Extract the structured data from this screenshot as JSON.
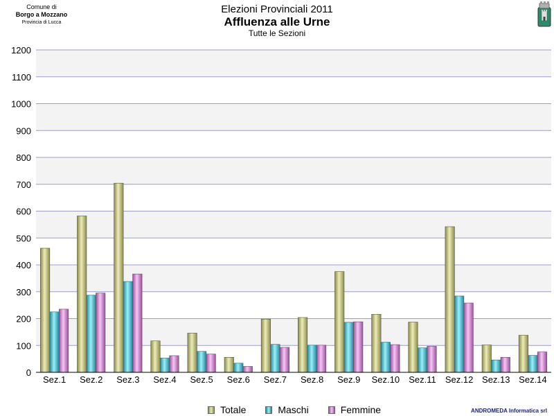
{
  "header": {
    "comune_line1": "Comune di",
    "comune_line2": "Borgo a Mozzano",
    "comune_line3": "Provincia di Lucca",
    "title": "Elezioni Provinciali 2011",
    "subtitle": "Affluenza alle Urne",
    "subsubtitle": "Tutte le Sezioni"
  },
  "footer": {
    "credit": "ANDROMEDA Informatica srl"
  },
  "colors": {
    "totale": "#d6d68e",
    "maschi": "#4dc7d9",
    "femmine": "#d98fd9",
    "gridline": "#9b9bd0",
    "band": "#f3f3f3"
  },
  "chart_data": {
    "type": "bar",
    "categories": [
      "Sez.1",
      "Sez.2",
      "Sez.3",
      "Sez.4",
      "Sez.5",
      "Sez.6",
      "Sez.7",
      "Sez.8",
      "Sez.9",
      "Sez.10",
      "Sez.11",
      "Sez.12",
      "Sez.13",
      "Sez.14"
    ],
    "series": [
      {
        "name": "Totale",
        "values": [
          462,
          582,
          704,
          117,
          146,
          56,
          198,
          204,
          375,
          216,
          187,
          542,
          102,
          138
        ]
      },
      {
        "name": "Maschi",
        "values": [
          225,
          287,
          338,
          53,
          78,
          34,
          104,
          101,
          186,
          112,
          91,
          284,
          46,
          63
        ]
      },
      {
        "name": "Femmine",
        "values": [
          235,
          295,
          366,
          62,
          68,
          22,
          93,
          101,
          188,
          103,
          97,
          258,
          56,
          76
        ]
      }
    ],
    "ylim": [
      0,
      1200
    ],
    "yticks": [
      0,
      100,
      200,
      300,
      400,
      500,
      600,
      700,
      800,
      900,
      1000,
      1100,
      1200
    ],
    "grid": true,
    "legend_position": "bottom"
  }
}
